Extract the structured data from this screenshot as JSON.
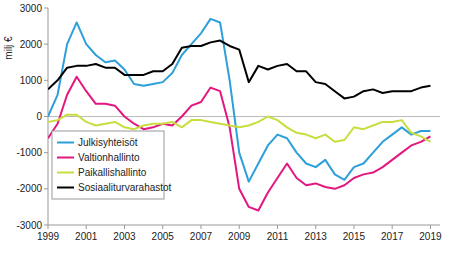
{
  "chart_data": {
    "type": "line",
    "y_label": "milj €",
    "x": [
      1999,
      1999.5,
      2000,
      2000.5,
      2001,
      2001.5,
      2002,
      2002.5,
      2003,
      2003.5,
      2004,
      2004.5,
      2005,
      2005.5,
      2006,
      2006.5,
      2007,
      2007.5,
      2008,
      2008.5,
      2009,
      2009.5,
      2010,
      2010.5,
      2011,
      2011.5,
      2012,
      2012.5,
      2013,
      2013.5,
      2014,
      2014.5,
      2015,
      2015.5,
      2016,
      2016.5,
      2017,
      2017.5,
      2018,
      2018.5,
      2019
    ],
    "xlim": [
      1999,
      2019.5
    ],
    "xticks": [
      1999,
      2001,
      2003,
      2005,
      2007,
      2009,
      2011,
      2013,
      2015,
      2017,
      2019
    ],
    "ylim": [
      -3000,
      3000
    ],
    "yticks": [
      -3000,
      -2000,
      -1000,
      0,
      1000,
      2000,
      3000
    ],
    "grid": false,
    "legend": "lower left",
    "series": [
      {
        "name": "Julkisyhteisöt",
        "color": "#2d9fd9",
        "values": [
          0,
          600,
          2000,
          2600,
          2000,
          1700,
          1500,
          1550,
          1300,
          900,
          850,
          900,
          950,
          1200,
          1700,
          2000,
          2300,
          2700,
          2600,
          1000,
          -1000,
          -1800,
          -1300,
          -800,
          -500,
          -600,
          -1000,
          -1300,
          -1400,
          -1200,
          -1600,
          -1750,
          -1400,
          -1300,
          -1000,
          -700,
          -500,
          -300,
          -500,
          -400,
          -400
        ]
      },
      {
        "name": "Valtionhallinto",
        "color": "#e2177f",
        "values": [
          -600,
          -200,
          600,
          1100,
          700,
          350,
          350,
          300,
          0,
          -200,
          -350,
          -300,
          -200,
          -250,
          0,
          300,
          400,
          800,
          700,
          -300,
          -2000,
          -2500,
          -2600,
          -2100,
          -1700,
          -1300,
          -1700,
          -1900,
          -1850,
          -1950,
          -2000,
          -1900,
          -1700,
          -1600,
          -1550,
          -1400,
          -1200,
          -1000,
          -800,
          -700,
          -550
        ]
      },
      {
        "name": "Paikallishallinto",
        "color": "#c9dd3f",
        "values": [
          -150,
          -100,
          50,
          50,
          -150,
          -250,
          -200,
          -150,
          -300,
          -350,
          -250,
          -200,
          -200,
          -150,
          -300,
          -100,
          -100,
          -150,
          -200,
          -250,
          -300,
          -250,
          -150,
          0,
          -100,
          -300,
          -450,
          -500,
          -600,
          -500,
          -700,
          -650,
          -300,
          -350,
          -250,
          -150,
          -150,
          -100,
          -450,
          -550,
          -700
        ]
      },
      {
        "name": "Sosiaaliturvarahastot",
        "color": "#000000",
        "values": [
          750,
          1000,
          1350,
          1400,
          1400,
          1450,
          1350,
          1350,
          1150,
          1150,
          1150,
          1250,
          1250,
          1450,
          1900,
          1950,
          1950,
          2050,
          2100,
          1950,
          1850,
          950,
          1400,
          1300,
          1400,
          1450,
          1250,
          1250,
          950,
          900,
          700,
          500,
          550,
          700,
          750,
          650,
          700,
          700,
          700,
          800,
          850
        ]
      }
    ]
  }
}
